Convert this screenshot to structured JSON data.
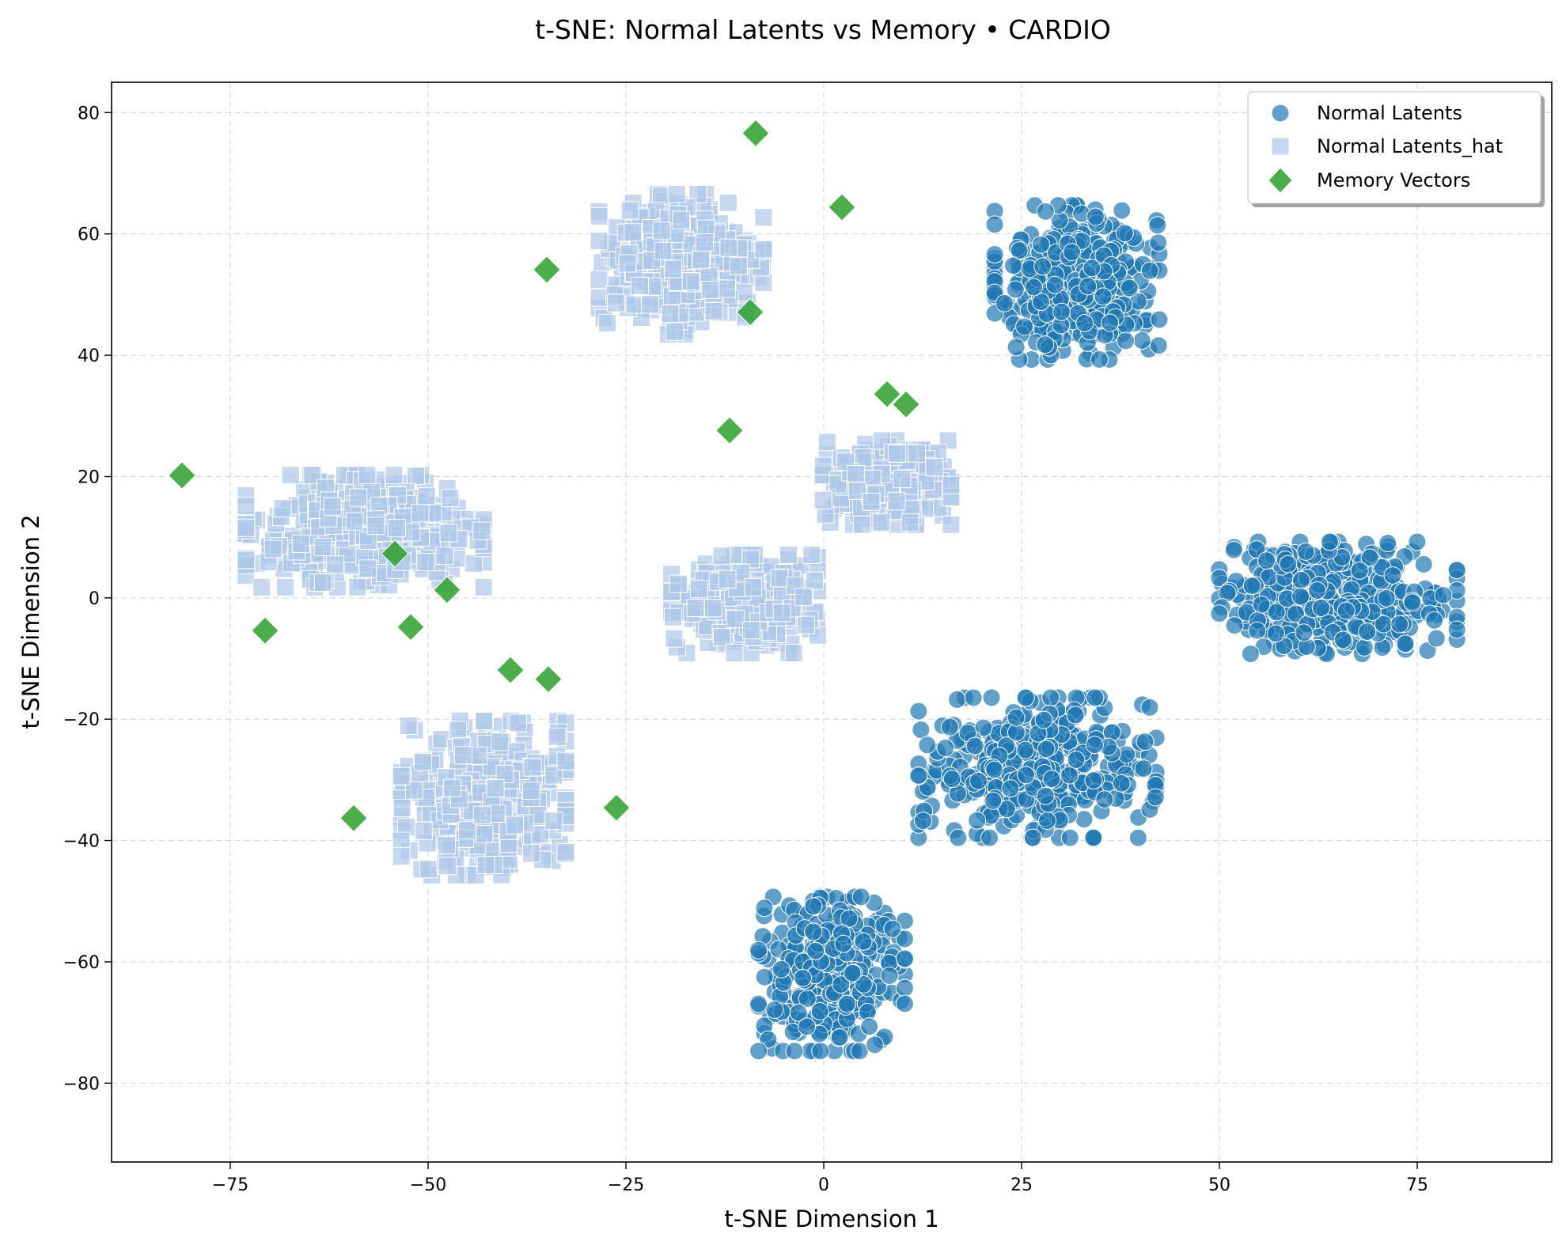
{
  "chart_data": {
    "type": "scatter",
    "title": "t-SNE: Normal Latents vs Memory • CARDIO",
    "xlabel": "t-SNE Dimension 1",
    "ylabel": "t-SNE Dimension 2",
    "xlim": [
      -90,
      92
    ],
    "ylim": [
      -93,
      85
    ],
    "xticks": [
      -75,
      -50,
      -25,
      0,
      25,
      50,
      75
    ],
    "yticks": [
      -80,
      -60,
      -40,
      -20,
      0,
      20,
      40,
      60,
      80
    ],
    "xtick_labels": [
      "−75",
      "−50",
      "−25",
      "0",
      "25",
      "50",
      "75"
    ],
    "ytick_labels": [
      "−80",
      "−60",
      "−40",
      "−20",
      "0",
      "20",
      "40",
      "60",
      "80"
    ],
    "grid": true,
    "legend_position": "top-right",
    "series": [
      {
        "name": "Normal Latents",
        "marker": "circle",
        "color": "#1f77b4",
        "clusters": [
          {
            "center": [
              32,
              52
            ],
            "spread": [
              9,
              11
            ],
            "n": 420
          },
          {
            "center": [
              65,
              0
            ],
            "spread": [
              13,
              8
            ],
            "n": 400
          },
          {
            "center": [
              27,
              -28
            ],
            "spread": [
              13,
              10
            ],
            "n": 400
          },
          {
            "center": [
              1,
              -62
            ],
            "spread": [
              8,
              11
            ],
            "n": 360
          }
        ]
      },
      {
        "name": "Normal Latents_hat",
        "marker": "square",
        "color": "#aec7e8",
        "clusters": [
          {
            "center": [
              -18,
              55
            ],
            "spread": [
              9,
              10
            ],
            "n": 380
          },
          {
            "center": [
              -58,
              11
            ],
            "spread": [
              13,
              8
            ],
            "n": 400
          },
          {
            "center": [
              -43,
              -33
            ],
            "spread": [
              9,
              11
            ],
            "n": 360
          },
          {
            "center": [
              -10,
              -1
            ],
            "spread": [
              8,
              7
            ],
            "n": 280
          },
          {
            "center": [
              8,
              19
            ],
            "spread": [
              7,
              6
            ],
            "n": 240
          }
        ]
      },
      {
        "name": "Memory Vectors",
        "marker": "diamond",
        "color": "#2ca02c",
        "points": [
          [
            -8.6,
            76.6
          ],
          [
            2.3,
            64.4
          ],
          [
            -35,
            54.1
          ],
          [
            -9.3,
            47.1
          ],
          [
            8,
            33.6
          ],
          [
            10.4,
            31.9
          ],
          [
            -11.9,
            27.6
          ],
          [
            -81.1,
            20.2
          ],
          [
            -54.2,
            7.3
          ],
          [
            -47.6,
            1.3
          ],
          [
            -70.6,
            -5.4
          ],
          [
            -52.2,
            -4.8
          ],
          [
            -39.6,
            -11.9
          ],
          [
            -34.8,
            -13.4
          ],
          [
            -59.4,
            -36.3
          ],
          [
            -26.2,
            -34.6
          ]
        ]
      }
    ]
  }
}
